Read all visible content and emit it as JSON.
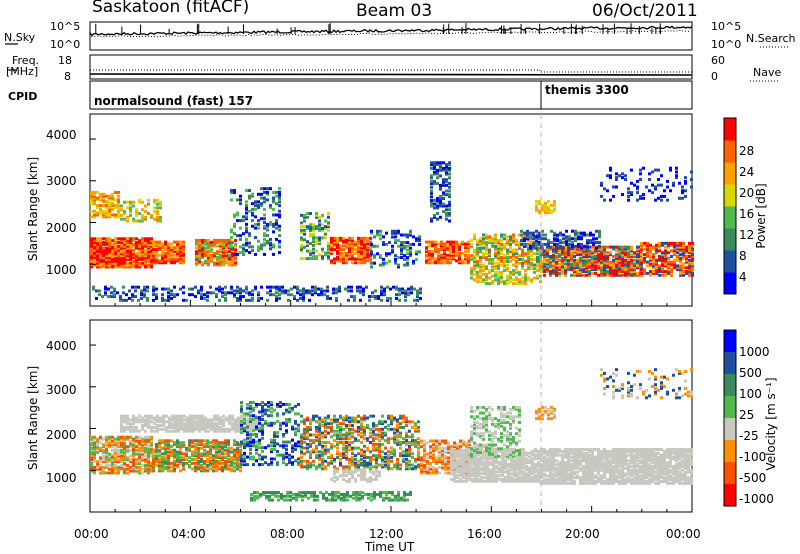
{
  "header": {
    "station": "Saskatoon (fitACF)",
    "beam": "Beam 03",
    "date": "06/Oct/2011"
  },
  "noise_panel": {
    "left_label": "N.Sky",
    "left_ticks": [
      "10^5",
      "10^0"
    ],
    "right_label": "N.Search",
    "right_ticks": [
      "10^5",
      "10^0"
    ]
  },
  "freq_panel": {
    "left_label_1": "Freq.",
    "left_label_2": "[MHz]",
    "left_ticks": [
      "18",
      "8"
    ],
    "right_label": "Nave",
    "right_ticks": [
      "60",
      "0"
    ]
  },
  "cpid_panel": {
    "label": "CPID",
    "mode_1": "normalsound (fast) 157",
    "mode_2": "themis 3300"
  },
  "colors": {
    "power": [
      "#0000ff",
      "#1f4fa0",
      "#3a8a5e",
      "#4fb84f",
      "#d8d800",
      "#ffa000",
      "#ff6000",
      "#ff0000"
    ],
    "velocity": [
      "#0000ff",
      "#1f4fa0",
      "#3a8a5e",
      "#4fb84f",
      "#c8c8c0",
      "#ff9000",
      "#ff5000",
      "#ff0000"
    ]
  },
  "chart_data": [
    {
      "type": "heatmap",
      "name": "Power",
      "ylabel": "Slant Range [km]",
      "ylim": [
        0,
        4600
      ],
      "yticks": [
        "1000",
        "2000",
        "3000",
        "4000"
      ],
      "colorbar_label": "Power [dB]",
      "colorbar_ticks": [
        "4",
        "8",
        "12",
        "16",
        "20",
        "24",
        "28"
      ]
    },
    {
      "type": "heatmap",
      "name": "Velocity",
      "ylabel": "Slant Range [km]",
      "ylim": [
        0,
        4600
      ],
      "yticks": [
        "1000",
        "2000",
        "3000",
        "4000"
      ],
      "colorbar_label": "Velocity [m s⁻¹]",
      "colorbar_ticks": [
        "1000",
        "500",
        "100",
        "25",
        "-25",
        "-100",
        "-500",
        "-1000"
      ]
    }
  ],
  "x_axis": {
    "label": "Time UT",
    "ticks": [
      "00:00",
      "04:00",
      "08:00",
      "12:00",
      "16:00",
      "20:00",
      "00:00"
    ]
  }
}
